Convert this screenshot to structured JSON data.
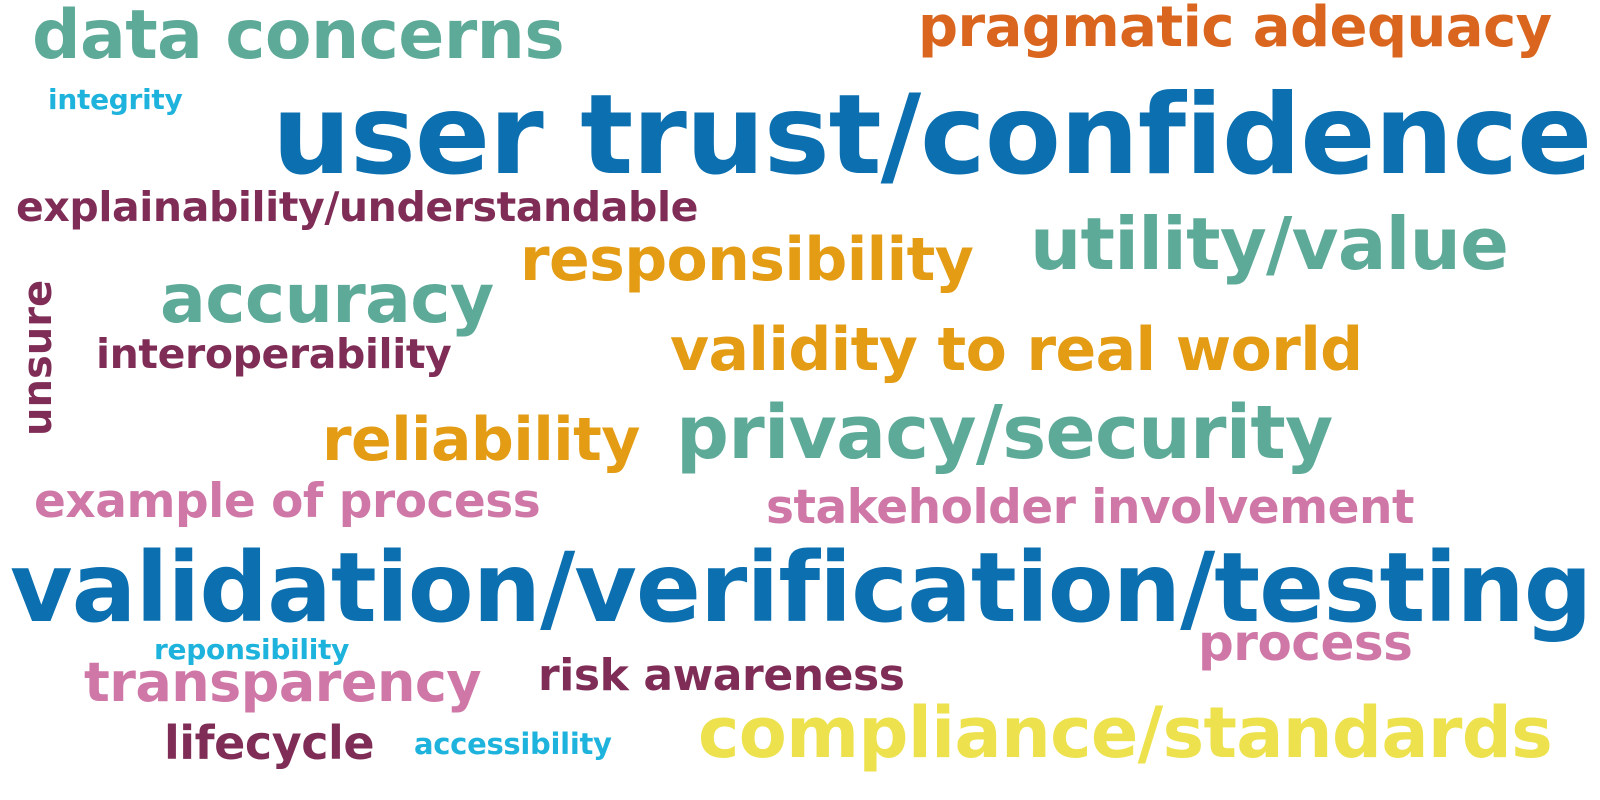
{
  "words": [
    {
      "text": "data concerns",
      "color": "#5eaa99"
    },
    {
      "text": "pragmatic adequacy",
      "color": "#d9651e"
    },
    {
      "text": "integrity",
      "color": "#1eb3dc"
    },
    {
      "text": "user trust/confidence",
      "color": "#0b6fb0"
    },
    {
      "text": "explainability/understandable",
      "color": "#7f2d56"
    },
    {
      "text": "utility/value",
      "color": "#5eaa99"
    },
    {
      "text": "responsibility",
      "color": "#e39c14"
    },
    {
      "text": "accuracy",
      "color": "#5eaa99"
    },
    {
      "text": "unsure",
      "color": "#7f2d56"
    },
    {
      "text": "interoperability",
      "color": "#7f2d56"
    },
    {
      "text": "validity to real world",
      "color": "#e39c14"
    },
    {
      "text": "reliability",
      "color": "#e39c14"
    },
    {
      "text": "privacy/security",
      "color": "#5eaa99"
    },
    {
      "text": "example of process",
      "color": "#cf78a7"
    },
    {
      "text": "stakeholder involvement",
      "color": "#cf78a7"
    },
    {
      "text": "validation/verification/testing",
      "color": "#0b6fb0"
    },
    {
      "text": "reponsibility",
      "color": "#1eb3dc"
    },
    {
      "text": "process",
      "color": "#cf78a7"
    },
    {
      "text": "transparency",
      "color": "#cf78a7"
    },
    {
      "text": "risk awareness",
      "color": "#7f2d56"
    },
    {
      "text": "lifecycle",
      "color": "#7f2d56"
    },
    {
      "text": "accessibility",
      "color": "#1eb3dc"
    },
    {
      "text": "compliance/standards",
      "color": "#ede24d"
    }
  ]
}
